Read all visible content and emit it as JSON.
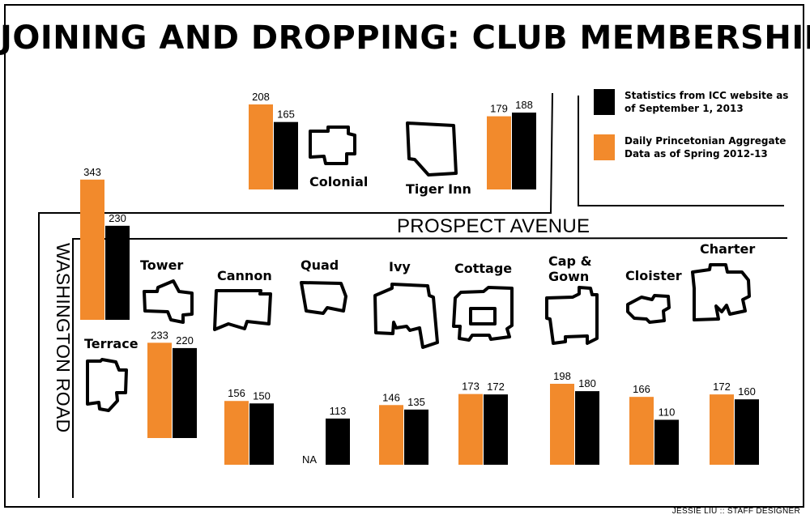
{
  "chart_data": {
    "type": "bar",
    "title": "JOINING AND DROPPING: CLUB MEMBERSHIP",
    "xlabel": "",
    "ylabel": "",
    "ylim": [
      0,
      343
    ],
    "categories": [
      "Colonial",
      "Tiger Inn",
      "Terrace",
      "Tower",
      "Cannon",
      "Quad",
      "Ivy",
      "Cottage",
      "Cap & Gown",
      "Cloister",
      "Charter"
    ],
    "series": [
      {
        "name": "Daily Princetonian Aggregate Data as of Spring 2012-13",
        "color": "#f28a2c",
        "values": [
          208,
          179,
          343,
          233,
          156,
          null,
          146,
          173,
          198,
          166,
          172
        ]
      },
      {
        "name": "Statistics from ICC website as of September 1, 2013",
        "color": "#000000",
        "values": [
          165,
          188,
          230,
          220,
          150,
          113,
          135,
          172,
          180,
          110,
          160
        ]
      }
    ],
    "missing_label": "NA",
    "legend": "top-right"
  },
  "map": {
    "prospect_avenue": "PROSPECT AVENUE",
    "washington_road": "WASHINGTON ROAD"
  },
  "legend": {
    "icc_text": "Statistics from ICC website as of September 1, 2013",
    "prince_text": "Daily Princetonian Aggregate Data as of Spring 2012-13"
  },
  "credit": "JESSIE LIU :: STAFF DESIGNER"
}
